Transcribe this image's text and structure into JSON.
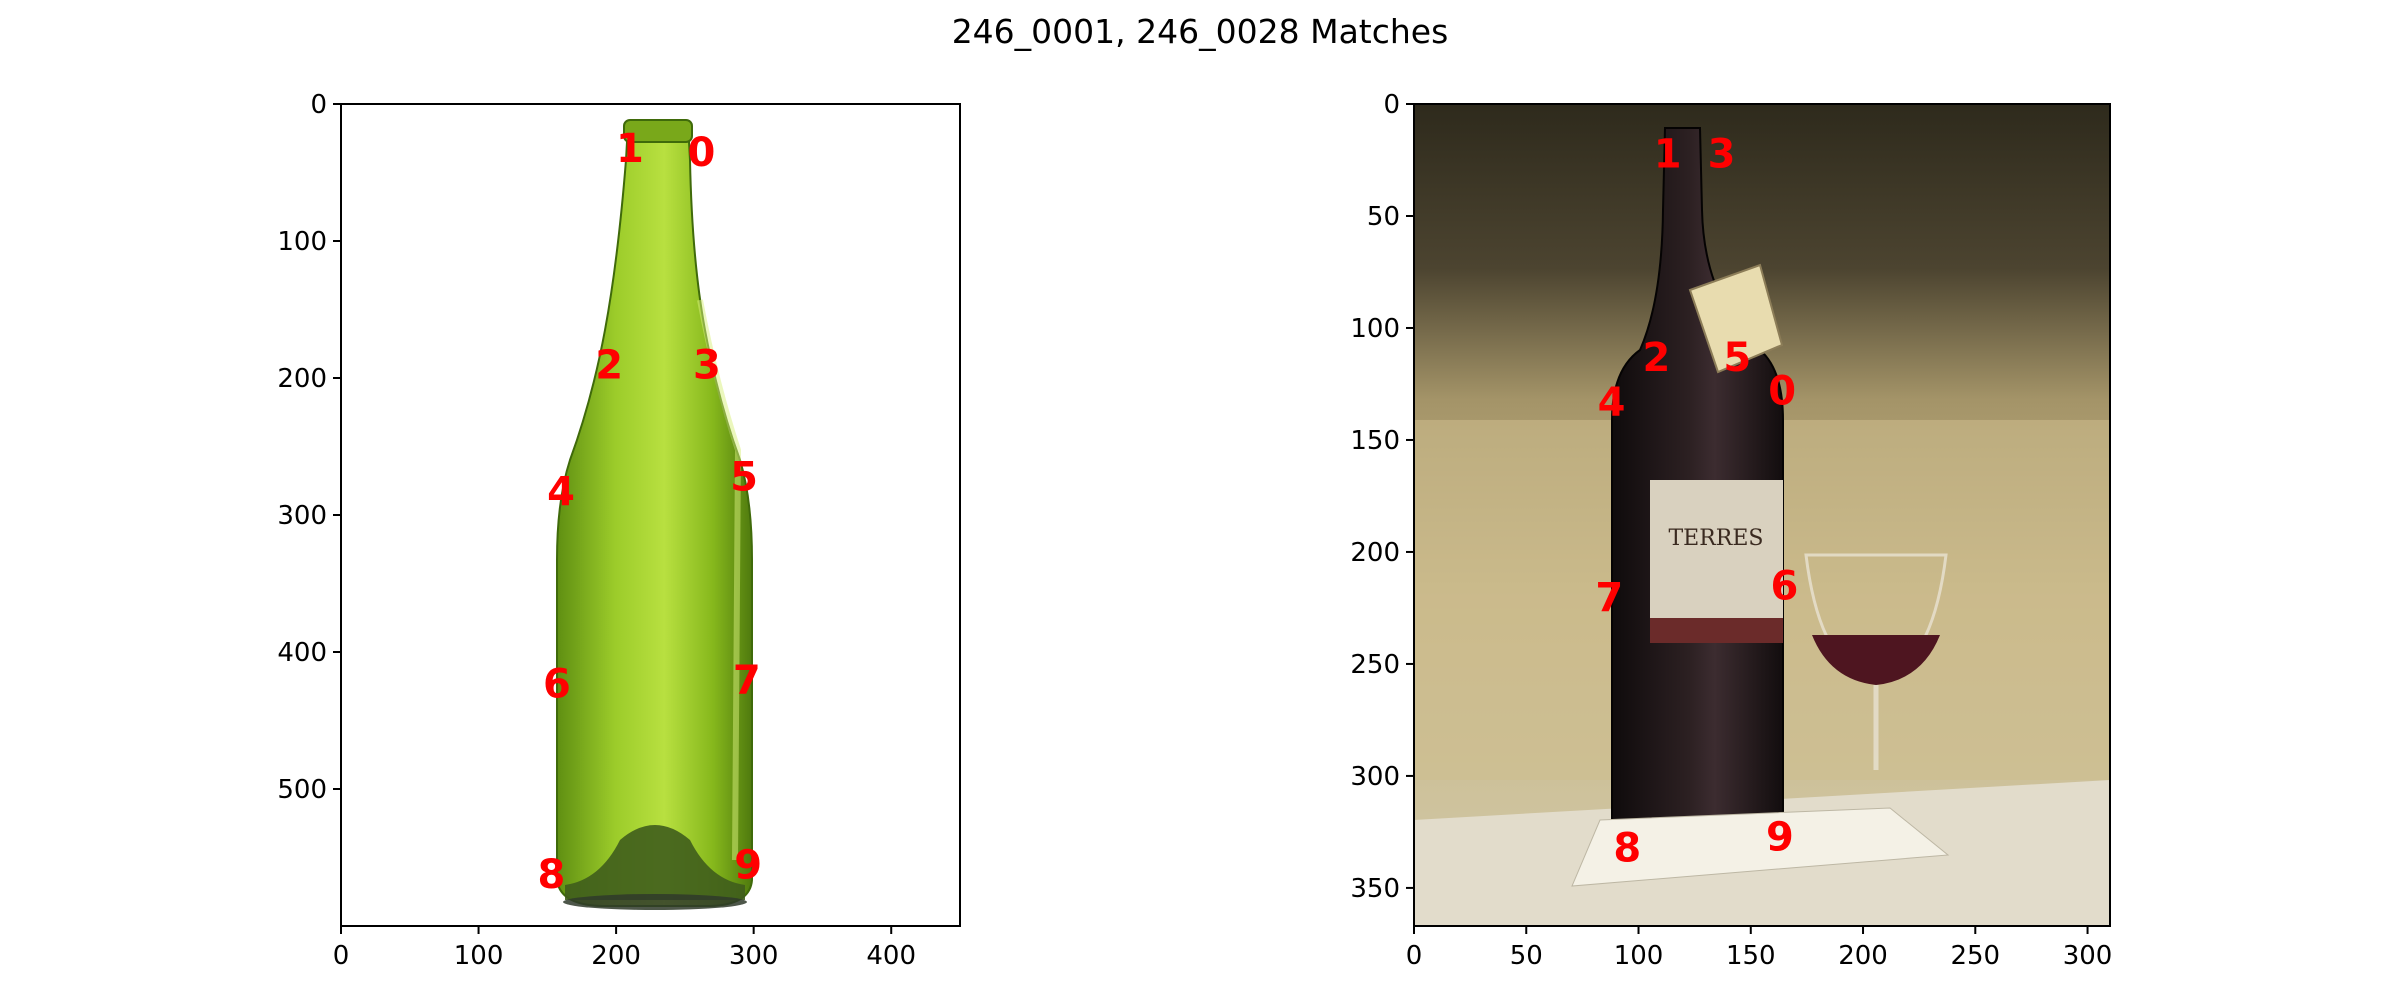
{
  "figure_title": "246_0001, 246_0028 Matches",
  "chart_data": [
    {
      "type": "scatter",
      "title": "",
      "xlabel": "",
      "ylabel": "",
      "xlim": [
        0,
        450
      ],
      "ylim": [
        600,
        0
      ],
      "x_ticks": [
        0,
        100,
        200,
        300,
        400
      ],
      "y_ticks": [
        0,
        100,
        200,
        300,
        400,
        500
      ],
      "grid": false,
      "image": "green-wine-bottle-photo",
      "label_color": "#ff0000",
      "points": [
        {
          "label": "0",
          "x": 262,
          "y": 35
        },
        {
          "label": "1",
          "x": 210,
          "y": 32
        },
        {
          "label": "2",
          "x": 195,
          "y": 190
        },
        {
          "label": "3",
          "x": 266,
          "y": 190
        },
        {
          "label": "4",
          "x": 160,
          "y": 283
        },
        {
          "label": "5",
          "x": 293,
          "y": 272
        },
        {
          "label": "6",
          "x": 157,
          "y": 423
        },
        {
          "label": "7",
          "x": 295,
          "y": 420
        },
        {
          "label": "8",
          "x": 153,
          "y": 562
        },
        {
          "label": "9",
          "x": 296,
          "y": 555
        }
      ]
    },
    {
      "type": "scatter",
      "title": "",
      "xlabel": "",
      "ylabel": "",
      "xlim": [
        0,
        310
      ],
      "ylim": [
        367,
        0
      ],
      "x_ticks": [
        0,
        50,
        100,
        150,
        200,
        250,
        300
      ],
      "y_ticks": [
        0,
        50,
        100,
        150,
        200,
        250,
        300,
        350
      ],
      "grid": false,
      "image": "red-wine-bottle-with-glass-photo",
      "label_color": "#ff0000",
      "points": [
        {
          "label": "0",
          "x": 164,
          "y": 128
        },
        {
          "label": "1",
          "x": 113,
          "y": 22
        },
        {
          "label": "2",
          "x": 108,
          "y": 113
        },
        {
          "label": "3",
          "x": 137,
          "y": 22
        },
        {
          "label": "4",
          "x": 88,
          "y": 133
        },
        {
          "label": "5",
          "x": 144,
          "y": 113
        },
        {
          "label": "6",
          "x": 165,
          "y": 215
        },
        {
          "label": "7",
          "x": 87,
          "y": 220
        },
        {
          "label": "8",
          "x": 95,
          "y": 332
        },
        {
          "label": "9",
          "x": 163,
          "y": 327
        }
      ]
    }
  ]
}
